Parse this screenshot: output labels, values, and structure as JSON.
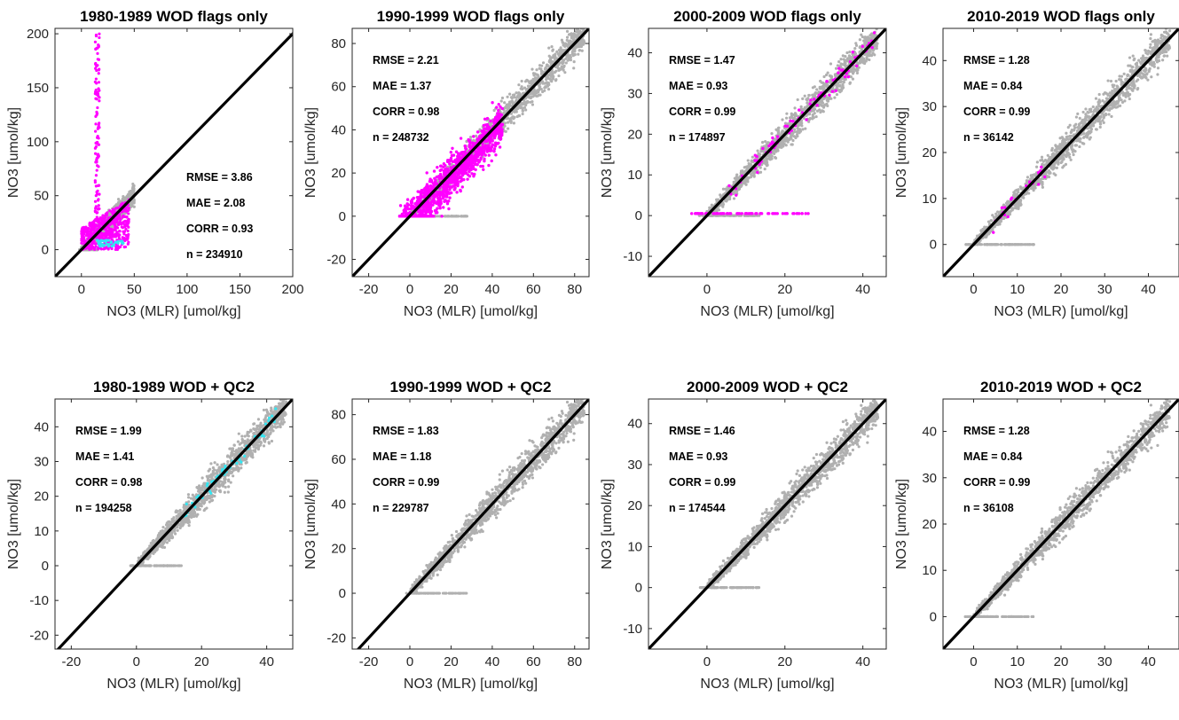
{
  "chart_data": [
    {
      "type": "scatter",
      "title": "1980-1989 WOD flags only",
      "xlabel": "NO3 (MLR) [umol/kg]",
      "ylabel": "NO3 [umol/kg]",
      "xlim": [
        -25,
        200
      ],
      "ylim": [
        -25,
        205
      ],
      "xticks": [
        0,
        50,
        100,
        150,
        200
      ],
      "yticks": [
        0,
        50,
        100,
        150,
        200
      ],
      "stats": [
        "RMSE = 3.86",
        "MAE = 2.08",
        "CORR = 0.93",
        "n = 234910"
      ],
      "stats_position": "lower-right",
      "colors": {
        "all": "#b0b0b0",
        "flagged": "#ff00ff",
        "special": "#33e6f2",
        "one_to_one": "#000000"
      }
    },
    {
      "type": "scatter",
      "title": "1990-1999 WOD flags only",
      "xlabel": "NO3 (MLR) [umol/kg]",
      "ylabel": "NO3 [umol/kg]",
      "xlim": [
        -28,
        87
      ],
      "ylim": [
        -28,
        87
      ],
      "xticks": [
        -20,
        0,
        20,
        40,
        60,
        80
      ],
      "yticks": [
        -20,
        0,
        20,
        40,
        60,
        80
      ],
      "stats": [
        "RMSE = 2.21",
        "MAE = 1.37",
        "CORR = 0.98",
        "n = 248732"
      ],
      "stats_position": "upper-left",
      "colors": {
        "all": "#b0b0b0",
        "flagged": "#ff00ff",
        "one_to_one": "#000000"
      }
    },
    {
      "type": "scatter",
      "title": "2000-2009 WOD flags only",
      "xlabel": "NO3 (MLR) [umol/kg]",
      "ylabel": "NO3 [umol/kg]",
      "xlim": [
        -15,
        46
      ],
      "ylim": [
        -15,
        46
      ],
      "xticks": [
        0,
        20,
        40
      ],
      "yticks": [
        -10,
        0,
        10,
        20,
        30,
        40
      ],
      "stats": [
        "RMSE = 1.47",
        "MAE = 0.93",
        "CORR = 0.99",
        "n = 174897"
      ],
      "stats_position": "upper-left",
      "colors": {
        "all": "#b0b0b0",
        "flagged": "#ff00ff",
        "one_to_one": "#000000"
      }
    },
    {
      "type": "scatter",
      "title": "2010-2019 WOD flags only",
      "xlabel": "NO3 (MLR) [umol/kg]",
      "ylabel": "NO3 [umol/kg]",
      "xlim": [
        -7,
        47
      ],
      "ylim": [
        -7,
        47
      ],
      "xticks": [
        0,
        10,
        20,
        30,
        40
      ],
      "yticks": [
        0,
        10,
        20,
        30,
        40
      ],
      "stats": [
        "RMSE = 1.28",
        "MAE = 0.84",
        "CORR = 0.99",
        "n = 36142"
      ],
      "stats_position": "upper-left",
      "colors": {
        "all": "#b0b0b0",
        "flagged": "#ff00ff",
        "one_to_one": "#000000"
      }
    },
    {
      "type": "scatter",
      "title": "1980-1989 WOD + QC2",
      "xlabel": "NO3 (MLR) [umol/kg]",
      "ylabel": "NO3 [umol/kg]",
      "xlim": [
        -25,
        48
      ],
      "ylim": [
        -24,
        48
      ],
      "xticks": [
        -20,
        0,
        20,
        40
      ],
      "yticks": [
        -20,
        -10,
        0,
        10,
        20,
        30,
        40
      ],
      "stats": [
        "RMSE = 1.99",
        "MAE = 1.41",
        "CORR = 0.98",
        "n = 194258"
      ],
      "stats_position": "upper-left",
      "colors": {
        "all": "#b0b0b0",
        "special": "#33e6f2",
        "one_to_one": "#000000"
      }
    },
    {
      "type": "scatter",
      "title": "1990-1999 WOD + QC2",
      "xlabel": "NO3 (MLR) [umol/kg]",
      "ylabel": "NO3 [umol/kg]",
      "xlim": [
        -28,
        87
      ],
      "ylim": [
        -25,
        87
      ],
      "xticks": [
        -20,
        0,
        20,
        40,
        60,
        80
      ],
      "yticks": [
        -20,
        0,
        20,
        40,
        60,
        80
      ],
      "stats": [
        "RMSE = 1.83",
        "MAE = 1.18",
        "CORR = 0.99",
        "n = 229787"
      ],
      "stats_position": "upper-left",
      "colors": {
        "all": "#b0b0b0",
        "one_to_one": "#000000"
      }
    },
    {
      "type": "scatter",
      "title": "2000-2009 WOD + QC2",
      "xlabel": "NO3 (MLR) [umol/kg]",
      "ylabel": "NO3 [umol/kg]",
      "xlim": [
        -15,
        46
      ],
      "ylim": [
        -15,
        46
      ],
      "xticks": [
        0,
        20,
        40
      ],
      "yticks": [
        -10,
        0,
        10,
        20,
        30,
        40
      ],
      "stats": [
        "RMSE = 1.46",
        "MAE = 0.93",
        "CORR = 0.99",
        "n = 174544"
      ],
      "stats_position": "upper-left",
      "colors": {
        "all": "#b0b0b0",
        "one_to_one": "#000000"
      }
    },
    {
      "type": "scatter",
      "title": "2010-2019 WOD + QC2",
      "xlabel": "NO3 (MLR) [umol/kg]",
      "ylabel": "NO3 [umol/kg]",
      "xlim": [
        -7,
        47
      ],
      "ylim": [
        -7,
        47
      ],
      "xticks": [
        0,
        10,
        20,
        30,
        40
      ],
      "yticks": [
        0,
        10,
        20,
        30,
        40
      ],
      "stats": [
        "RMSE = 1.28",
        "MAE = 0.84",
        "CORR = 0.99",
        "n = 36108"
      ],
      "stats_position": "upper-left",
      "colors": {
        "all": "#b0b0b0",
        "one_to_one": "#000000"
      }
    }
  ]
}
